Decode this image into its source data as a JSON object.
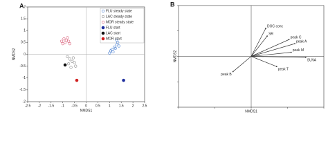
{
  "chart_data": [
    {
      "type": "scatter",
      "panel": "A",
      "xlabel": "NMDS1",
      "ylabel": "NMDS2",
      "xlim": [
        -2.5,
        2.5
      ],
      "xticks": [
        -2.5,
        -2,
        -1.5,
        -1,
        -0.5,
        0,
        0.5,
        1,
        1.5,
        2,
        2.5
      ],
      "ylim": [
        -2,
        2
      ],
      "yticks": [
        -2,
        -1.5,
        -1,
        -0.5,
        0,
        0.5,
        1,
        1.5,
        2
      ],
      "legend": "upper right",
      "series": [
        {
          "name": "FLU steady state",
          "color": "#4a7fd0",
          "filled": false,
          "x": [
            1.0,
            1.1,
            1.2,
            1.3,
            1.35,
            1.15,
            1.25,
            1.05,
            1.3,
            1.4
          ],
          "y": [
            0.05,
            0.2,
            0.3,
            0.4,
            0.5,
            0.1,
            0.25,
            0.15,
            0.6,
            0.35
          ]
        },
        {
          "name": "LAC steady state",
          "color": "#8c8c8c",
          "filled": false,
          "x": [
            -0.8,
            -0.7,
            -0.6,
            -0.5,
            -0.45,
            -0.65,
            -0.55,
            -0.75
          ],
          "y": [
            -0.1,
            -0.2,
            -0.3,
            -0.35,
            -0.5,
            -0.55,
            -0.15,
            -0.4
          ]
        },
        {
          "name": "MOR steady state",
          "color": "#d9607a",
          "filled": false,
          "x": [
            -1.05,
            -0.95,
            -0.85,
            -0.75,
            -0.9,
            -1.0,
            -0.8,
            -0.7
          ],
          "y": [
            0.55,
            0.65,
            0.6,
            0.55,
            0.5,
            0.45,
            0.7,
            0.45
          ]
        },
        {
          "name": "FLU start",
          "color": "#1f2f9e",
          "filled": true,
          "x": [
            1.6
          ],
          "y": [
            -1.1
          ]
        },
        {
          "name": "LAC start",
          "color": "#111111",
          "filled": true,
          "x": [
            -0.9
          ],
          "y": [
            -0.45
          ]
        },
        {
          "name": "MOR start",
          "color": "#d01f1f",
          "filled": true,
          "x": [
            -0.4
          ],
          "y": [
            -1.1
          ]
        }
      ]
    },
    {
      "type": "biplot",
      "panel": "B",
      "xlabel": "NMDS1",
      "ylabel": "NMDS2",
      "xlim": [
        -1,
        1
      ],
      "xticks": [
        -1,
        -0.5,
        0,
        0.5,
        1
      ],
      "ylim": [
        -1,
        1
      ],
      "yticks": [
        -1,
        -0.5,
        0,
        0.5,
        1
      ],
      "color": "#333333",
      "labels": [
        "DOC conc",
        "SR",
        "peak C",
        "peak A",
        "peak M",
        "SUVA",
        "peak B",
        "peak T"
      ],
      "x": [
        0.2,
        0.22,
        0.52,
        0.6,
        0.55,
        0.75,
        -0.25,
        0.35
      ],
      "y": [
        0.55,
        0.4,
        0.33,
        0.25,
        0.08,
        -0.02,
        -0.3,
        -0.2
      ]
    }
  ]
}
